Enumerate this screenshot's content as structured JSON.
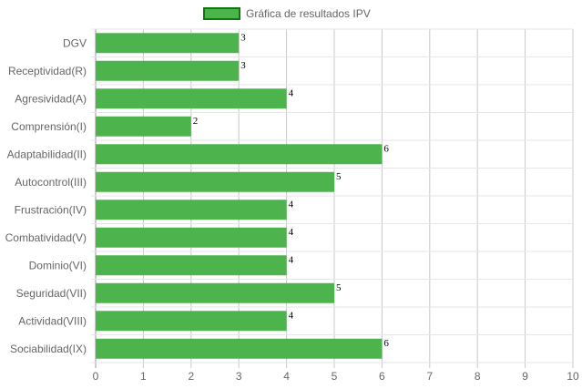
{
  "chart_data": {
    "type": "bar",
    "orientation": "horizontal",
    "legend": {
      "label": "Gráfica de resultados IPV",
      "position": "top"
    },
    "categories": [
      "DGV",
      "Receptividad(R)",
      "Agresividad(A)",
      "Comprensión(I)",
      "Adaptabilidad(II)",
      "Autocontrol(III)",
      "Frustración(IV)",
      "Combatividad(V)",
      "Dominio(VI)",
      "Seguridad(VII)",
      "Actividad(VIII)",
      "Sociabilidad(IX)"
    ],
    "series": [
      {
        "name": "Gráfica de resultados IPV",
        "values": [
          3,
          3,
          4,
          2,
          6,
          5,
          4,
          4,
          4,
          5,
          4,
          6
        ]
      }
    ],
    "xlim": [
      0,
      10
    ],
    "x_ticks": [
      "0",
      "1",
      "2",
      "3",
      "4",
      "5",
      "6",
      "7",
      "8",
      "9",
      "10"
    ],
    "grid": true,
    "data_labels": true,
    "colors": {
      "bar_fill": "#4db34d",
      "legend_border": "#0a7a0a",
      "grid": "#e6e6e6",
      "axis": "#999999"
    }
  }
}
